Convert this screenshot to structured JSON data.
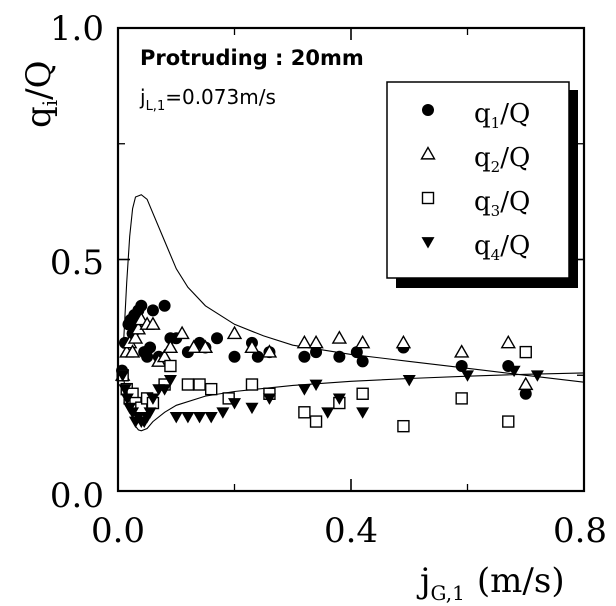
{
  "chart_data": {
    "type": "scatter",
    "annotation_line1": "Protruding : 20mm",
    "annotation_line2_prefix": "j",
    "annotation_line2_sub": "L,1",
    "annotation_line2_value": "=0.073m/s",
    "ylabel_main": "q",
    "ylabel_sub": "i",
    "ylabel_tail": "/Q",
    "xlabel_main": "j",
    "xlabel_sub": "G,1",
    "xlabel_unit": "(m/s)",
    "xlim": [
      0,
      0.8
    ],
    "ylim": [
      0,
      1.0
    ],
    "x_tick_labels": [
      "0.0",
      "0.4",
      "0.8"
    ],
    "y_tick_labels": [
      "0.0",
      "0.5",
      "1.0"
    ],
    "grid": false,
    "legend_placement": "top-right",
    "series": [
      {
        "name": "q1/Q",
        "label_main": "q",
        "label_sub": "1",
        "label_tail": "/Q",
        "marker": "filled-circle",
        "points": [
          [
            0.007,
            0.26
          ],
          [
            0.012,
            0.32
          ],
          [
            0.018,
            0.36
          ],
          [
            0.022,
            0.37
          ],
          [
            0.025,
            0.34
          ],
          [
            0.028,
            0.38
          ],
          [
            0.032,
            0.35
          ],
          [
            0.035,
            0.39
          ],
          [
            0.04,
            0.4
          ],
          [
            0.045,
            0.3
          ],
          [
            0.05,
            0.29
          ],
          [
            0.055,
            0.31
          ],
          [
            0.06,
            0.39
          ],
          [
            0.07,
            0.29
          ],
          [
            0.08,
            0.4
          ],
          [
            0.09,
            0.33
          ],
          [
            0.1,
            0.33
          ],
          [
            0.12,
            0.3
          ],
          [
            0.14,
            0.32
          ],
          [
            0.15,
            0.31
          ],
          [
            0.17,
            0.33
          ],
          [
            0.2,
            0.29
          ],
          [
            0.23,
            0.32
          ],
          [
            0.24,
            0.29
          ],
          [
            0.26,
            0.3
          ],
          [
            0.32,
            0.29
          ],
          [
            0.34,
            0.3
          ],
          [
            0.38,
            0.29
          ],
          [
            0.41,
            0.3
          ],
          [
            0.42,
            0.28
          ],
          [
            0.49,
            0.31
          ],
          [
            0.59,
            0.27
          ],
          [
            0.67,
            0.27
          ],
          [
            0.7,
            0.21
          ]
        ]
      },
      {
        "name": "q2/Q",
        "label_main": "q",
        "label_sub": "2",
        "label_tail": "/Q",
        "marker": "open-triangle",
        "points": [
          [
            0.008,
            0.25
          ],
          [
            0.015,
            0.3
          ],
          [
            0.02,
            0.32
          ],
          [
            0.025,
            0.3
          ],
          [
            0.03,
            0.33
          ],
          [
            0.035,
            0.35
          ],
          [
            0.04,
            0.37
          ],
          [
            0.05,
            0.36
          ],
          [
            0.06,
            0.36
          ],
          [
            0.07,
            0.28
          ],
          [
            0.08,
            0.29
          ],
          [
            0.09,
            0.31
          ],
          [
            0.11,
            0.34
          ],
          [
            0.13,
            0.31
          ],
          [
            0.15,
            0.31
          ],
          [
            0.2,
            0.34
          ],
          [
            0.23,
            0.31
          ],
          [
            0.26,
            0.3
          ],
          [
            0.32,
            0.32
          ],
          [
            0.34,
            0.32
          ],
          [
            0.38,
            0.33
          ],
          [
            0.42,
            0.32
          ],
          [
            0.49,
            0.32
          ],
          [
            0.59,
            0.3
          ],
          [
            0.67,
            0.32
          ],
          [
            0.7,
            0.23
          ]
        ]
      },
      {
        "name": "q3/Q",
        "label_main": "q",
        "label_sub": "3",
        "label_tail": "/Q",
        "marker": "open-square",
        "points": [
          [
            0.008,
            0.25
          ],
          [
            0.015,
            0.22
          ],
          [
            0.02,
            0.2
          ],
          [
            0.025,
            0.21
          ],
          [
            0.03,
            0.19
          ],
          [
            0.04,
            0.18
          ],
          [
            0.05,
            0.2
          ],
          [
            0.06,
            0.19
          ],
          [
            0.08,
            0.23
          ],
          [
            0.09,
            0.27
          ],
          [
            0.12,
            0.23
          ],
          [
            0.14,
            0.23
          ],
          [
            0.16,
            0.22
          ],
          [
            0.19,
            0.2
          ],
          [
            0.23,
            0.23
          ],
          [
            0.26,
            0.21
          ],
          [
            0.32,
            0.17
          ],
          [
            0.34,
            0.15
          ],
          [
            0.38,
            0.19
          ],
          [
            0.42,
            0.21
          ],
          [
            0.49,
            0.14
          ],
          [
            0.59,
            0.2
          ],
          [
            0.67,
            0.15
          ],
          [
            0.7,
            0.3
          ]
        ]
      },
      {
        "name": "q4/Q",
        "label_main": "q",
        "label_sub": "4",
        "label_tail": "/Q",
        "marker": "filled-down-triangle",
        "points": [
          [
            0.008,
            0.25
          ],
          [
            0.012,
            0.22
          ],
          [
            0.016,
            0.2
          ],
          [
            0.02,
            0.18
          ],
          [
            0.025,
            0.17
          ],
          [
            0.03,
            0.15
          ],
          [
            0.035,
            0.16
          ],
          [
            0.04,
            0.15
          ],
          [
            0.045,
            0.15
          ],
          [
            0.05,
            0.16
          ],
          [
            0.055,
            0.17
          ],
          [
            0.06,
            0.2
          ],
          [
            0.07,
            0.22
          ],
          [
            0.08,
            0.22
          ],
          [
            0.09,
            0.24
          ],
          [
            0.1,
            0.16
          ],
          [
            0.12,
            0.16
          ],
          [
            0.14,
            0.16
          ],
          [
            0.16,
            0.16
          ],
          [
            0.18,
            0.17
          ],
          [
            0.2,
            0.19
          ],
          [
            0.23,
            0.18
          ],
          [
            0.26,
            0.2
          ],
          [
            0.32,
            0.22
          ],
          [
            0.34,
            0.23
          ],
          [
            0.36,
            0.17
          ],
          [
            0.38,
            0.2
          ],
          [
            0.42,
            0.17
          ],
          [
            0.5,
            0.24
          ],
          [
            0.6,
            0.25
          ],
          [
            0.68,
            0.26
          ],
          [
            0.72,
            0.25
          ]
        ]
      }
    ],
    "curves": [
      {
        "name": "upper-curve",
        "points": [
          [
            0.01,
            0.33
          ],
          [
            0.015,
            0.45
          ],
          [
            0.02,
            0.55
          ],
          [
            0.025,
            0.61
          ],
          [
            0.03,
            0.635
          ],
          [
            0.04,
            0.64
          ],
          [
            0.05,
            0.63
          ],
          [
            0.06,
            0.6
          ],
          [
            0.08,
            0.54
          ],
          [
            0.1,
            0.48
          ],
          [
            0.12,
            0.44
          ],
          [
            0.15,
            0.4
          ],
          [
            0.2,
            0.36
          ],
          [
            0.25,
            0.335
          ],
          [
            0.3,
            0.315
          ],
          [
            0.4,
            0.295
          ],
          [
            0.5,
            0.28
          ],
          [
            0.6,
            0.265
          ],
          [
            0.7,
            0.25
          ],
          [
            0.8,
            0.235
          ]
        ]
      },
      {
        "name": "lower-curve",
        "points": [
          [
            0.01,
            0.24
          ],
          [
            0.015,
            0.205
          ],
          [
            0.02,
            0.18
          ],
          [
            0.025,
            0.16
          ],
          [
            0.03,
            0.14
          ],
          [
            0.035,
            0.132
          ],
          [
            0.04,
            0.13
          ],
          [
            0.05,
            0.135
          ],
          [
            0.06,
            0.15
          ],
          [
            0.08,
            0.17
          ],
          [
            0.1,
            0.185
          ],
          [
            0.15,
            0.205
          ],
          [
            0.2,
            0.215
          ],
          [
            0.3,
            0.228
          ],
          [
            0.4,
            0.237
          ],
          [
            0.5,
            0.243
          ],
          [
            0.6,
            0.248
          ],
          [
            0.7,
            0.252
          ],
          [
            0.8,
            0.255
          ]
        ]
      }
    ]
  }
}
